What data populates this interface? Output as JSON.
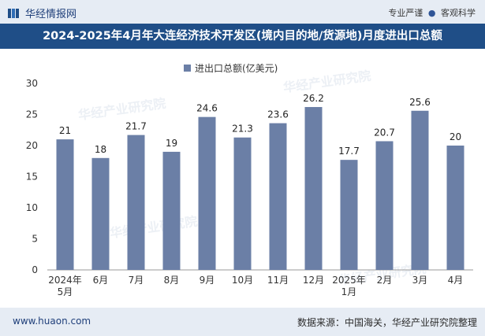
{
  "header": {
    "logo_text": "华经情报网",
    "tag_left": "专业严谨",
    "tag_sep": "●",
    "tag_right": "客观科学"
  },
  "footer": {
    "url": "www.huaon.com",
    "source": "数据来源：中国海关，华经产业研究院整理"
  },
  "watermark": "华经产业研究院",
  "colors": {
    "bar": "#6b7fa6",
    "title_bg": "#1f4e87",
    "band_bg": "#e6ecf4"
  },
  "chart_data": {
    "type": "bar",
    "title": "2024-2025年4月年大连经济技术开发区(境内目的地/货源地)月度进出口总额",
    "legend": "进出口总额(亿美元)",
    "categories": [
      [
        "2024年",
        "5月"
      ],
      [
        "6月"
      ],
      [
        "7月"
      ],
      [
        "8月"
      ],
      [
        "9月"
      ],
      [
        "10月"
      ],
      [
        "11月"
      ],
      [
        "12月"
      ],
      [
        "2025年",
        "1月"
      ],
      [
        "2月"
      ],
      [
        "3月"
      ],
      [
        "4月"
      ]
    ],
    "values": [
      21,
      18,
      21.7,
      19,
      24.6,
      21.3,
      23.6,
      26.2,
      17.7,
      20.7,
      25.6,
      20
    ],
    "yticks": [
      0,
      5,
      10,
      15,
      20,
      25,
      30
    ],
    "ylim": [
      0,
      30
    ],
    "xlabel": "",
    "ylabel": ""
  }
}
